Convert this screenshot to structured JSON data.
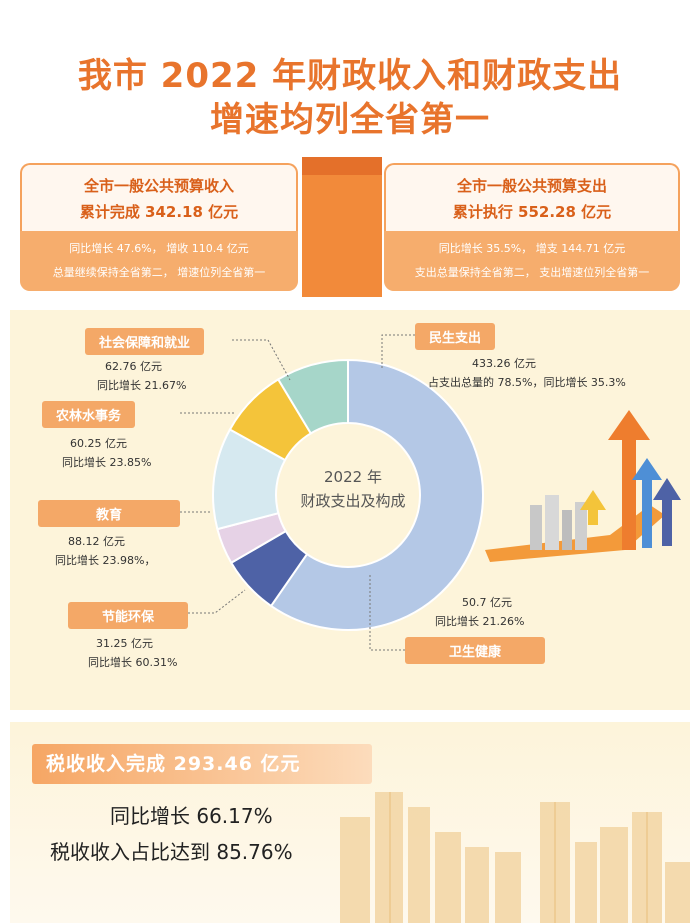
{
  "title": {
    "line1": "我市 2022 年财政收入和财政支出",
    "line2": "增速均列全省第一"
  },
  "revenue": {
    "heading": "全市一般公共预算收入",
    "amount": "累计完成 342.18 亿元",
    "growth": "同比增长 47.6%， 增收 110.4 亿元",
    "rank": "总量继续保持全省第二， 增速位列全省第一"
  },
  "expenditure": {
    "heading": "全市一般公共预算支出",
    "amount": "累计执行 552.28 亿元",
    "growth": "同比增长 35.5%， 增支 144.71 亿元",
    "rank": "支出总量保持全省第二， 支出增速位列全省第一"
  },
  "donut_center": {
    "line1": "2022 年",
    "line2": "财政支出及构成"
  },
  "segments": {
    "minsheng": {
      "name": "民生支出",
      "value": "433.26 亿元",
      "note": "占支出总量的 78.5%，同比增长 35.3%"
    },
    "weisheng": {
      "name": "卫生健康",
      "value": "50.7 亿元",
      "note": "同比增长 21.26%"
    },
    "jieneng": {
      "name": "节能环保",
      "value": "31.25 亿元",
      "note": "同比增长 60.31%"
    },
    "jiaoyu": {
      "name": "教育",
      "value": "88.12 亿元",
      "note": "同比增长 23.98%，"
    },
    "nonglin": {
      "name": "农林水事务",
      "value": "60.25 亿元",
      "note": "同比增长 23.85%"
    },
    "shebao": {
      "name": "社会保障和就业",
      "value": "62.76 亿元",
      "note": "同比增长 21.67%"
    }
  },
  "colors": {
    "minsheng": "#b4c8e6",
    "weisheng": "#4e62a6",
    "jieneng": "#e6d2e6",
    "jiaoyu": "#d6e9f0",
    "nonglin": "#f4c43a",
    "shebao": "#a6d6c9",
    "accent": "#e8742c"
  },
  "chart_data": {
    "type": "pie",
    "title": "",
    "categories": [
      "民生支出",
      "卫生健康",
      "节能环保",
      "教育",
      "农林水事务",
      "社会保障和就业"
    ],
    "values": [
      433.26,
      50.7,
      31.25,
      88.12,
      60.25,
      62.76
    ],
    "legend": "labels-around"
  },
  "tax": {
    "banner": "税收收入完成 293.46 亿元",
    "growth": "同比增长 66.17%",
    "share": "税收收入占比达到 85.76%"
  }
}
